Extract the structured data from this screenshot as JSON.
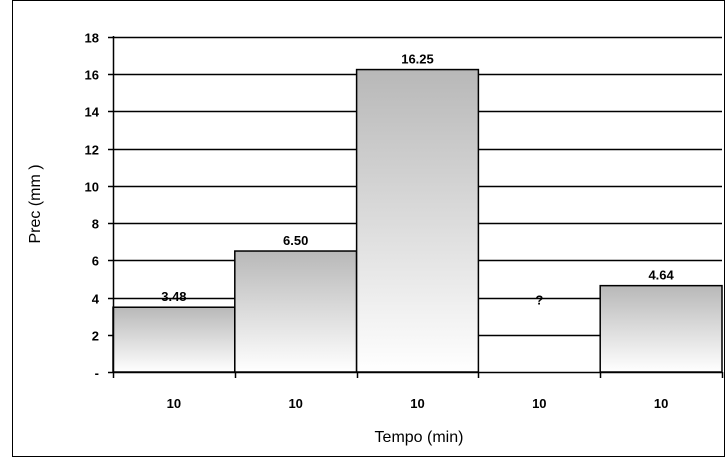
{
  "chart_data": {
    "type": "bar",
    "categories": [
      "10",
      "10",
      "10",
      "10",
      "10"
    ],
    "values": [
      3.48,
      6.5,
      16.25,
      null,
      4.64
    ],
    "data_labels": [
      "3.48",
      "6.50",
      "16.25",
      "?",
      "4.64"
    ],
    "ylabel": "Prec (mm )",
    "xlabel": "Tempo (min)",
    "ylim": [
      0,
      18
    ],
    "yticks": [
      "-",
      "2",
      "4",
      "6",
      "8",
      "10",
      "12",
      "14",
      "16",
      "18"
    ],
    "grid": true,
    "legend": "none",
    "bar_gradient": {
      "top": "#b8b8b8",
      "bottom": "#ffffff"
    },
    "grid_color": "#000000"
  }
}
